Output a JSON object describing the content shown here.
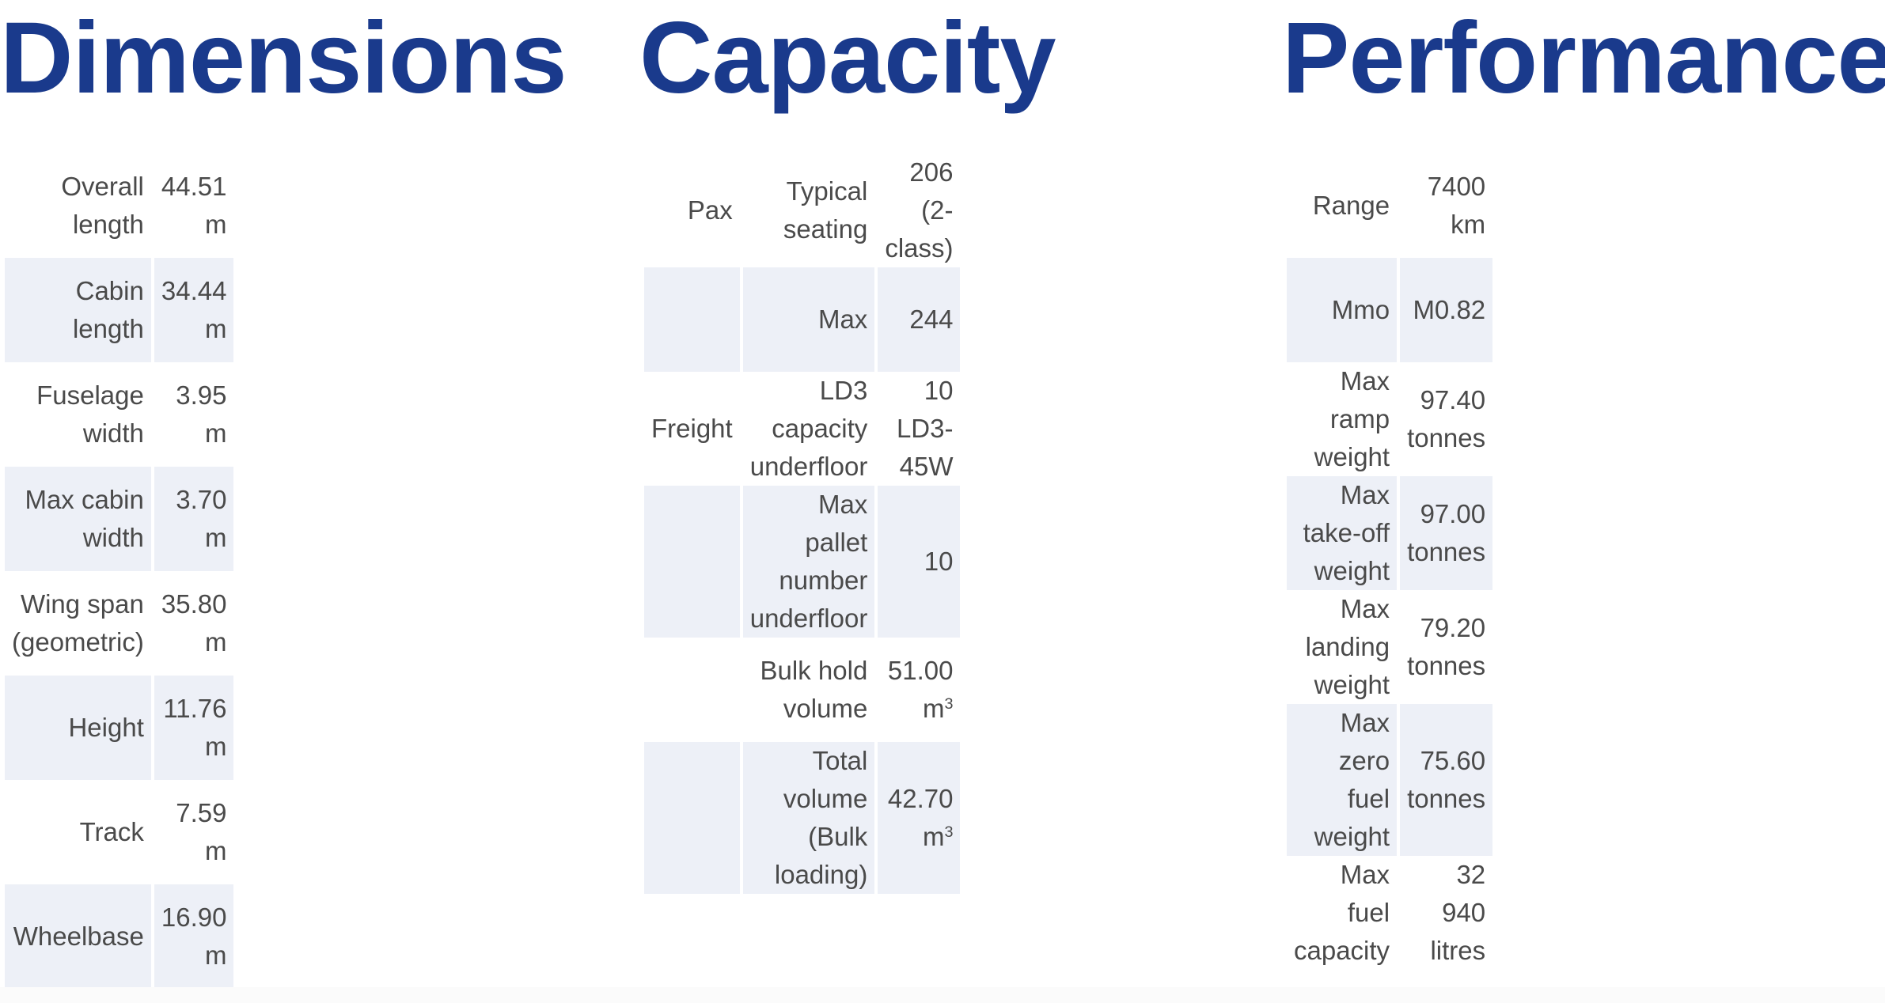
{
  "dimensions": {
    "title": "Dimensions",
    "rows": [
      {
        "label": "Overall length",
        "value": "44.51 m"
      },
      {
        "label": "Cabin length",
        "value": "34.44 m"
      },
      {
        "label": "Fuselage width",
        "value": "3.95 m"
      },
      {
        "label": "Max cabin width",
        "value": "3.70 m"
      },
      {
        "label": "Wing span (geometric)",
        "value": "35.80 m"
      },
      {
        "label": "Height",
        "value": "11.76 m"
      },
      {
        "label": "Track",
        "value": "7.59 m"
      },
      {
        "label": "Wheelbase",
        "value": "16.90 m"
      }
    ]
  },
  "capacity": {
    "title": "Capacity",
    "rows": [
      {
        "group": "Pax",
        "label": "Typical seating",
        "value": "206 (2-class)",
        "unit_sup": ""
      },
      {
        "group": "",
        "label": "Max",
        "value": "244",
        "unit_sup": ""
      },
      {
        "group": "Freight",
        "label": "LD3 capacity underfloor",
        "value": "10 LD3-45W",
        "unit_sup": ""
      },
      {
        "group": "",
        "label": "Max pallet number underfloor",
        "value": "10",
        "unit_sup": ""
      },
      {
        "group": "",
        "label": "Bulk hold volume",
        "value": "51.00 m",
        "unit_sup": "3"
      },
      {
        "group": "",
        "label": "Total volume (Bulk loading)",
        "value": "42.70 m",
        "unit_sup": "3"
      }
    ]
  },
  "performance": {
    "title": "Performance",
    "rows": [
      {
        "label": "Range",
        "value": "7400 km"
      },
      {
        "label": "Mmo",
        "value": "M0.82"
      },
      {
        "label": "Max ramp weight",
        "value": "97.40 tonnes"
      },
      {
        "label": "Max take-off weight",
        "value": "97.00 tonnes"
      },
      {
        "label": "Max landing weight",
        "value": "79.20 tonnes"
      },
      {
        "label": "Max zero fuel weight",
        "value": "75.60 tonnes"
      },
      {
        "label": "Max fuel capacity",
        "value": "32 940 litres"
      }
    ]
  }
}
